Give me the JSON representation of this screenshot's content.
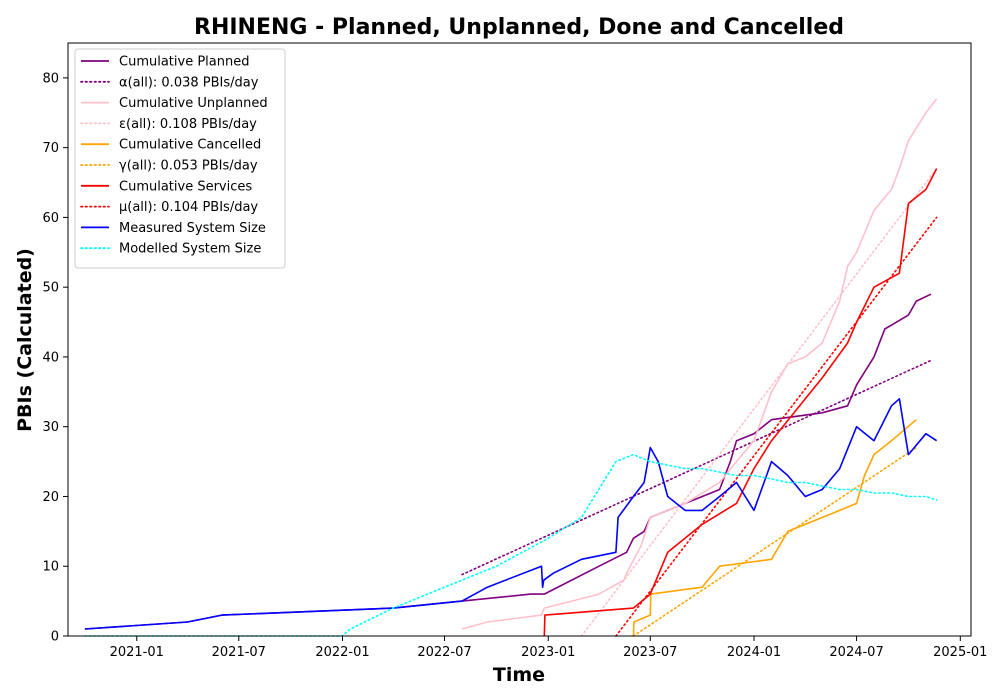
{
  "chart_data": {
    "type": "line",
    "title": "RHINENG - Planned, Unplanned, Done  and Cancelled",
    "xlabel": "Time",
    "ylabel": "PBIs (Calculated)",
    "xlim": [
      "2020-09-01",
      "2025-01-20"
    ],
    "ylim": [
      0,
      85
    ],
    "x_ticks": [
      "2021-01",
      "2021-07",
      "2022-01",
      "2022-07",
      "2023-01",
      "2023-07",
      "2024-01",
      "2024-07",
      "2025-01"
    ],
    "y_ticks": [
      0,
      10,
      20,
      30,
      40,
      50,
      60,
      70,
      80
    ],
    "grid": false,
    "legend_position": "top-left",
    "series": [
      {
        "name": "Cumulative Planned",
        "color": "#800080",
        "style": "solid",
        "x": [
          "2020-10-01",
          "2021-04-01",
          "2021-06-01",
          "2022-04-01",
          "2022-08-01",
          "2022-12-01",
          "2022-12-25",
          "2023-04-01",
          "2023-05-20",
          "2023-06-01",
          "2023-06-20",
          "2023-07-01",
          "2023-09-01",
          "2023-11-01",
          "2023-11-20",
          "2023-12-01",
          "2024-01-01",
          "2024-02-01",
          "2024-05-01",
          "2024-06-15",
          "2024-07-01",
          "2024-08-01",
          "2024-08-20",
          "2024-10-01",
          "2024-10-15",
          "2024-11-10"
        ],
        "y": [
          1,
          2,
          3,
          4,
          5,
          6,
          6,
          10,
          12,
          14,
          15,
          17,
          19,
          21,
          25,
          28,
          29,
          31,
          32,
          33,
          36,
          40,
          44,
          46,
          48,
          49
        ]
      },
      {
        "name": "α(all): 0.038 PBIs/day",
        "color": "#800080",
        "style": "dotted",
        "x": [
          "2022-08-01",
          "2024-11-10"
        ],
        "y": [
          8.8,
          39.5
        ]
      },
      {
        "name": "Cumulative Unplanned",
        "color": "#ffc0cb",
        "style": "solid",
        "x": [
          "2022-08-01",
          "2022-09-15",
          "2022-12-20",
          "2022-12-25",
          "2023-04-01",
          "2023-05-15",
          "2023-05-20",
          "2023-06-15",
          "2023-07-01",
          "2023-09-01",
          "2023-11-01",
          "2023-12-01",
          "2024-01-01",
          "2024-02-01",
          "2024-03-01",
          "2024-04-01",
          "2024-05-01",
          "2024-06-01",
          "2024-06-15",
          "2024-07-01",
          "2024-08-01",
          "2024-09-01",
          "2024-09-15",
          "2024-10-01",
          "2024-11-01",
          "2024-11-20"
        ],
        "y": [
          1,
          2,
          3,
          4,
          6,
          8,
          9,
          13,
          17,
          19,
          22,
          25,
          28,
          35,
          39,
          40,
          42,
          48,
          53,
          55,
          61,
          64,
          67,
          71,
          75,
          77
        ]
      },
      {
        "name": "ε(all): 0.108 PBIs/day",
        "color": "#ffc0cb",
        "style": "dotted",
        "x": [
          "2023-03-01",
          "2024-11-20"
        ],
        "y": [
          0,
          67
        ]
      },
      {
        "name": "Cumulative Cancelled",
        "color": "#ffa500",
        "style": "solid",
        "x": [
          "2023-06-01",
          "2023-06-02",
          "2023-07-01",
          "2023-07-02",
          "2023-10-01",
          "2023-11-01",
          "2024-02-01",
          "2024-03-01",
          "2024-06-01",
          "2024-07-01",
          "2024-07-15",
          "2024-08-01",
          "2024-09-01",
          "2024-10-15"
        ],
        "y": [
          0,
          2,
          3,
          6,
          7,
          10,
          11,
          15,
          18,
          19,
          23,
          26,
          28,
          31
        ]
      },
      {
        "name": "γ(all): 0.053 PBIs/day",
        "color": "#ffa500",
        "style": "dotted",
        "x": [
          "2023-06-01",
          "2024-10-15"
        ],
        "y": [
          0,
          27
        ]
      },
      {
        "name": "Cumulative Services",
        "color": "#ff0000",
        "style": "solid",
        "x": [
          "2022-12-25",
          "2022-12-26",
          "2023-06-01",
          "2023-07-01",
          "2023-08-01",
          "2023-10-01",
          "2023-12-01",
          "2024-01-01",
          "2024-02-01",
          "2024-04-01",
          "2024-05-01",
          "2024-06-15",
          "2024-07-01",
          "2024-08-01",
          "2024-09-15",
          "2024-10-01",
          "2024-11-01",
          "2024-11-20"
        ],
        "y": [
          0,
          3,
          4,
          6,
          12,
          16,
          19,
          24,
          28,
          34,
          37,
          42,
          45,
          50,
          52,
          62,
          64,
          67
        ]
      },
      {
        "name": "μ(all): 0.104 PBIs/day",
        "color": "#ff0000",
        "style": "dotted",
        "x": [
          "2023-05-01",
          "2024-11-20"
        ],
        "y": [
          0,
          60
        ]
      },
      {
        "name": "Measured System Size",
        "color": "#0000ff",
        "style": "solid",
        "x": [
          "2020-10-01",
          "2021-04-01",
          "2021-06-01",
          "2022-04-01",
          "2022-08-01",
          "2022-09-15",
          "2022-12-20",
          "2022-12-22",
          "2022-12-24",
          "2023-01-10",
          "2023-03-01",
          "2023-05-01",
          "2023-05-05",
          "2023-06-01",
          "2023-06-20",
          "2023-07-01",
          "2023-07-15",
          "2023-08-01",
          "2023-09-01",
          "2023-10-01",
          "2023-11-01",
          "2023-12-01",
          "2024-01-01",
          "2024-02-01",
          "2024-03-01",
          "2024-04-01",
          "2024-05-01",
          "2024-06-01",
          "2024-07-01",
          "2024-08-01",
          "2024-09-01",
          "2024-09-15",
          "2024-10-01",
          "2024-11-01",
          "2024-11-20"
        ],
        "y": [
          1,
          2,
          3,
          4,
          5,
          7,
          10,
          7,
          8,
          9,
          11,
          12,
          17,
          20,
          22,
          27,
          25,
          20,
          18,
          18,
          20,
          22,
          18,
          25,
          23,
          20,
          21,
          24,
          30,
          28,
          33,
          34,
          26,
          29,
          28
        ]
      },
      {
        "name": "Modelled System Size",
        "color": "#00ffff",
        "style": "dotted",
        "x": [
          "2020-10-01",
          "2021-04-01",
          "2021-07-01",
          "2021-12-31",
          "2022-01-15",
          "2022-04-01",
          "2022-07-01",
          "2022-10-01",
          "2023-01-01",
          "2023-03-01",
          "2023-05-01",
          "2023-06-01",
          "2023-07-01",
          "2023-08-01",
          "2023-09-01",
          "2023-10-01",
          "2023-11-01",
          "2023-12-01",
          "2024-01-01",
          "2024-02-01",
          "2024-03-01",
          "2024-04-01",
          "2024-05-01",
          "2024-06-01",
          "2024-07-01",
          "2024-08-01",
          "2024-09-01",
          "2024-10-01",
          "2024-11-01",
          "2024-11-20"
        ],
        "y": [
          0,
          0,
          0,
          0,
          1,
          4,
          7,
          10,
          14,
          17,
          25,
          26,
          25,
          24.5,
          24,
          24,
          23.5,
          23,
          23,
          22.5,
          22,
          22,
          21.5,
          21,
          21,
          20.5,
          20.5,
          20,
          20,
          19.5
        ]
      }
    ]
  }
}
